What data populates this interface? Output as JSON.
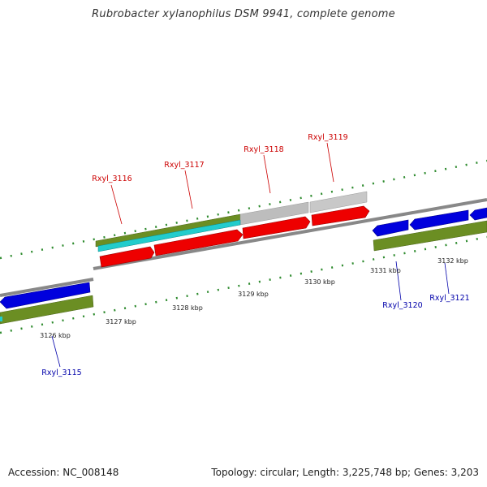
{
  "title": "Rubrobacter xylanophilus DSM 9941, complete genome",
  "footer": {
    "accession": "Accession: NC_008148",
    "summary": "Topology: circular; Length: 3,225,748 bp; Genes: 3,203"
  },
  "colors": {
    "forward_label": "#cc0000",
    "reverse_label": "#0000aa",
    "forward_gene": "#ee0000",
    "reverse_gene": "#0000dd",
    "olive_track": "#6b8e23",
    "cyan_track": "#22cccc",
    "gray_track": "#bbbbbb",
    "tick_mark": "#2e8b2e"
  },
  "ticks": [
    "3126 kbp",
    "3127 kbp",
    "3128 kbp",
    "3129 kbp",
    "3130 kbp",
    "3131 kbp",
    "3132 kbp"
  ],
  "gene_labels": {
    "forward": [
      "Rxyl_3116",
      "Rxyl_3117",
      "Rxyl_3118",
      "Rxyl_3119"
    ],
    "reverse": [
      "Rxyl_3115",
      "Rxyl_3120",
      "Rxyl_3121"
    ]
  }
}
